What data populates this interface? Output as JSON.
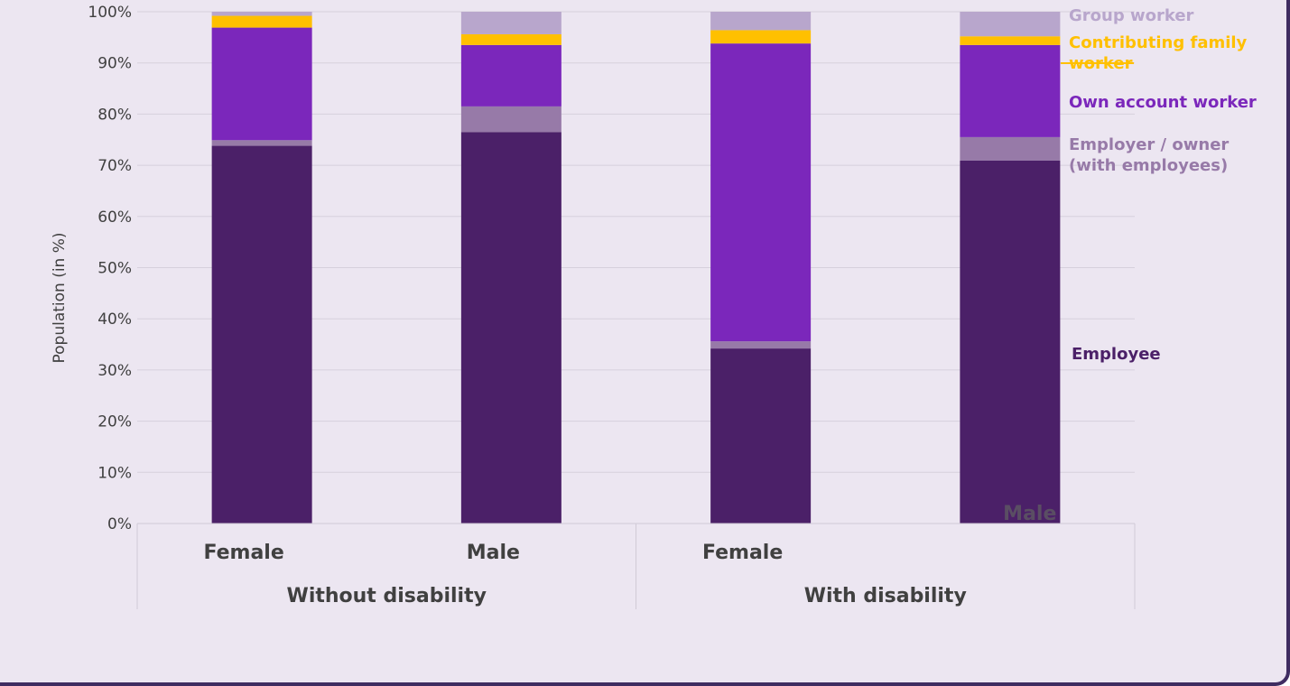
{
  "chart_data": {
    "type": "bar",
    "stacked": true,
    "ylabel": "Population (in %)",
    "ylim": [
      0,
      100
    ],
    "yticks": [
      0,
      10,
      20,
      30,
      40,
      50,
      60,
      70,
      80,
      90,
      100
    ],
    "ytick_labels": [
      "0%",
      "10%",
      "20%",
      "30%",
      "40%",
      "50%",
      "60%",
      "70%",
      "80%",
      "90%",
      "100%"
    ],
    "grid": true,
    "legend_placement": "right",
    "categories": [
      "Female",
      "Male",
      "Female",
      ""
    ],
    "in_bar_labels": [
      "",
      "",
      "",
      "Male"
    ],
    "groups": [
      {
        "label": "Without disability",
        "categories": [
          0,
          1
        ]
      },
      {
        "label": "With disability",
        "categories": [
          2,
          3
        ]
      }
    ],
    "series": [
      {
        "name": "Employee",
        "color": "#4b2068",
        "values": [
          73.8,
          76.5,
          34.2,
          70.9
        ]
      },
      {
        "name": "Employer / owner (with employees)",
        "color": "#977aa8",
        "values": [
          1.1,
          5.0,
          1.4,
          4.6
        ]
      },
      {
        "name": "Own account worker",
        "color": "#7b27bb",
        "values": [
          22.0,
          12.0,
          58.2,
          18.0
        ]
      },
      {
        "name": "Contributing family worker",
        "color": "#ffc000",
        "values": [
          2.3,
          2.1,
          2.6,
          1.7
        ]
      },
      {
        "name": "Group worker",
        "color": "#b8a6cc",
        "values": [
          0.8,
          4.4,
          3.6,
          4.8
        ]
      }
    ],
    "legend": [
      {
        "lines": [
          "Group worker"
        ],
        "color": "#b8a6cc"
      },
      {
        "lines": [
          "Contributing family",
          "worker"
        ],
        "color": "#ffc000"
      },
      {
        "lines": [
          "Own account worker"
        ],
        "color": "#7b27bb"
      },
      {
        "lines": [
          "Employer / owner",
          "(with employees)"
        ],
        "color": "#977aa8"
      },
      {
        "lines": [
          "Employee"
        ],
        "color": "#4b2068"
      }
    ]
  }
}
